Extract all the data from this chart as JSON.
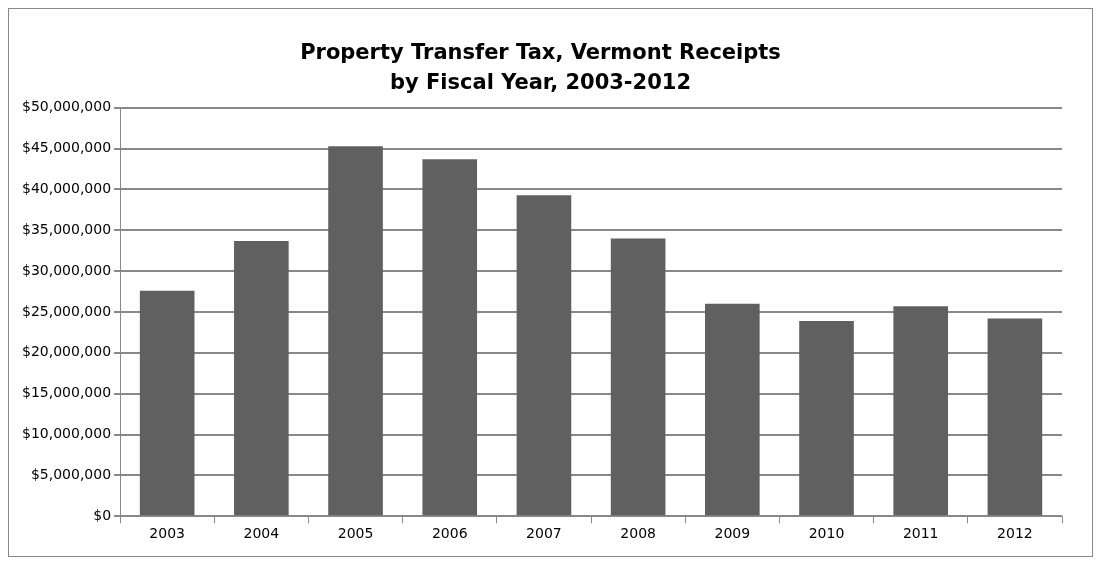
{
  "chart_data": {
    "type": "bar",
    "title": "Property Transfer Tax, Vermont Receipts by Fiscal Year, 2003-2012",
    "categories": [
      "2003",
      "2004",
      "2005",
      "2006",
      "2007",
      "2008",
      "2009",
      "2010",
      "2011",
      "2012"
    ],
    "values": [
      27600000,
      33700000,
      45300000,
      43700000,
      39300000,
      34000000,
      26000000,
      23900000,
      25700000,
      24200000
    ],
    "color": "#606060",
    "ylim": [
      0,
      50000000
    ],
    "yticks": [
      {
        "value": 0,
        "label": "$0"
      },
      {
        "value": 5000000,
        "label": "$5,000,000"
      },
      {
        "value": 10000000,
        "label": "$10,000,000"
      },
      {
        "value": 15000000,
        "label": "$15,000,000"
      },
      {
        "value": 20000000,
        "label": "$20,000,000"
      },
      {
        "value": 25000000,
        "label": "$25,000,000"
      },
      {
        "value": 30000000,
        "label": "$30,000,000"
      },
      {
        "value": 35000000,
        "label": "$35,000,000"
      },
      {
        "value": 40000000,
        "label": "$40,000,000"
      },
      {
        "value": 45000000,
        "label": "$45,000,000"
      },
      {
        "value": 50000000,
        "label": "$50,000,000"
      }
    ],
    "grid": "y",
    "legend": false
  }
}
